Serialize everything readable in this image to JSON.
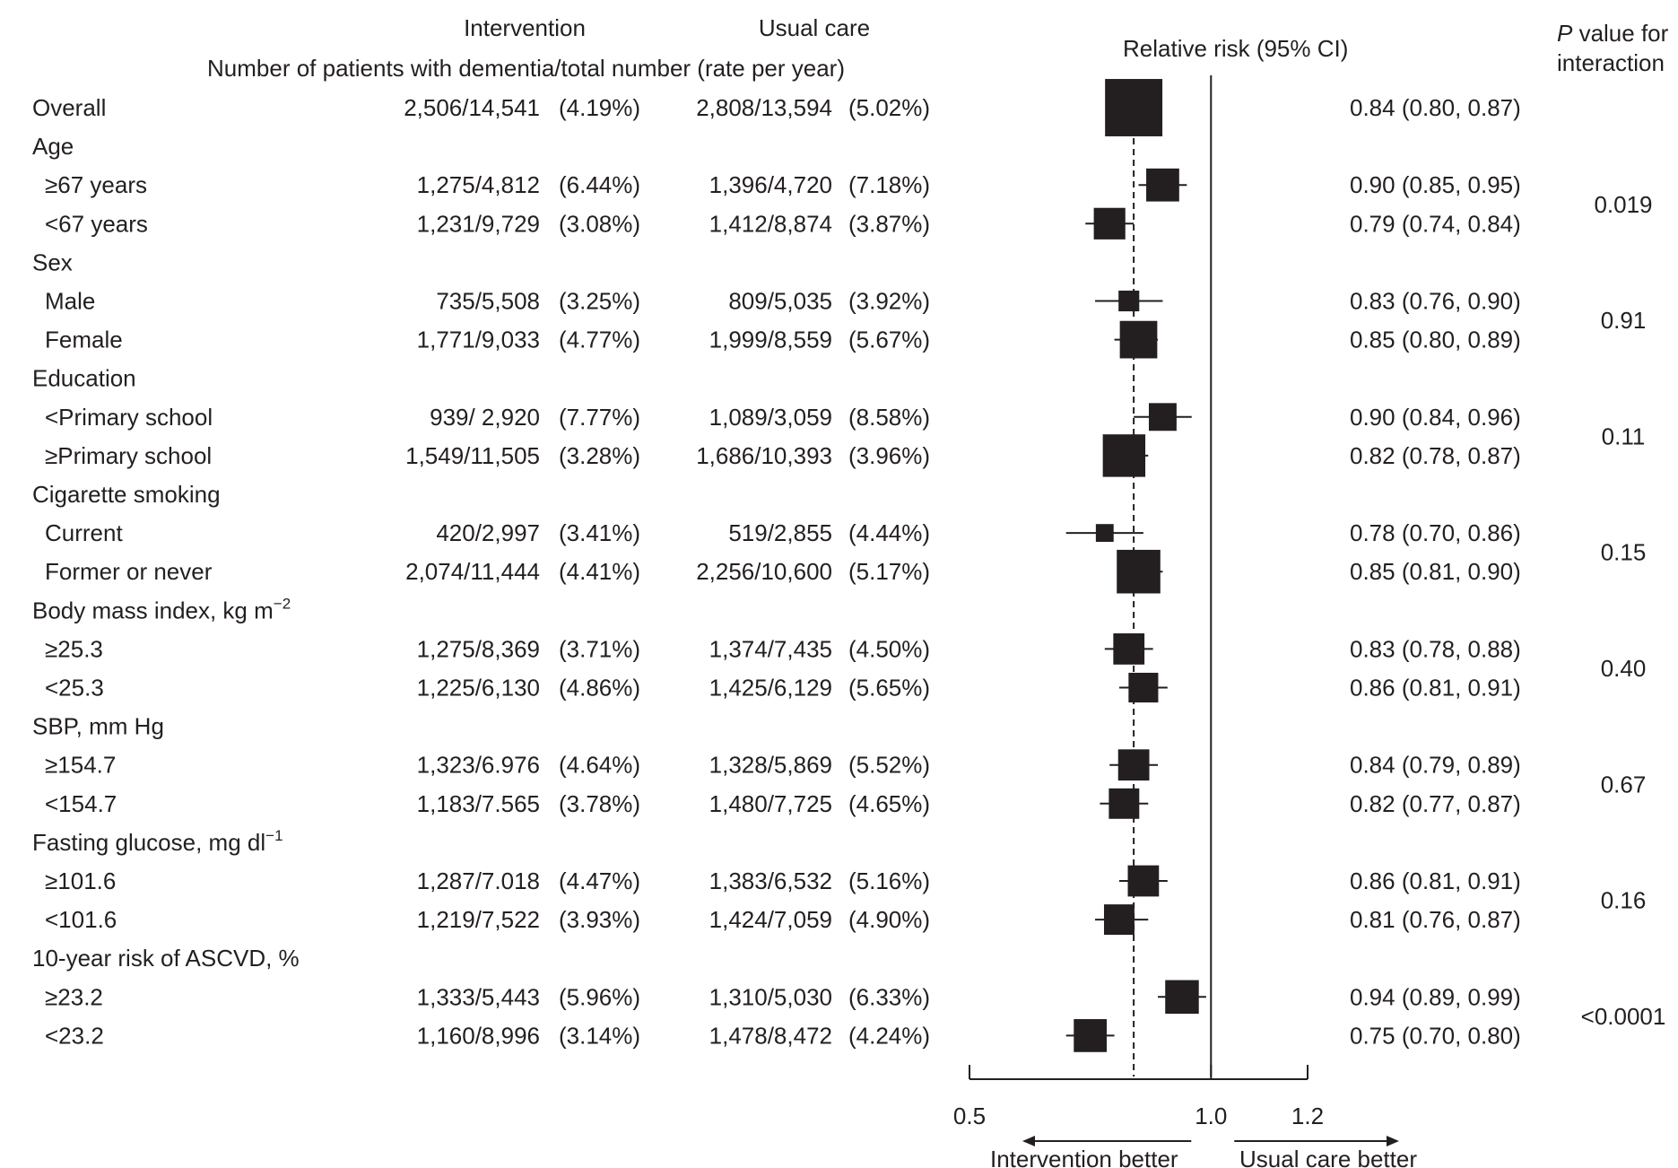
{
  "chart_data": {
    "type": "forest",
    "header": {
      "intervention": "Intervention",
      "usual_care": "Usual care",
      "counts_subtitle": "Number of patients with dementia/total number (rate per year)",
      "effect_title": "Relative risk (95% CI)",
      "p_value_label_italic": "P",
      "p_value_label_rest": " value for",
      "p_value_label_line2": "interaction"
    },
    "rows": [
      {
        "label": "Overall",
        "indent": false,
        "intervention": "2,506/14,541",
        "int_rate": "(4.19%)",
        "usual": "2,808/13,594",
        "usual_rate": "(5.02%)",
        "rr": 0.84,
        "lo": 0.8,
        "hi": 0.87,
        "rr_text": "0.84 (0.80, 0.87)",
        "weight": 14541
      },
      {
        "label": "Age",
        "heading": true
      },
      {
        "label": "≥67 years",
        "indent": true,
        "intervention": "1,275/4,812",
        "int_rate": "(6.44%)",
        "usual": "1,396/4,720",
        "usual_rate": "(7.18%)",
        "rr": 0.9,
        "lo": 0.85,
        "hi": 0.95,
        "rr_text": "0.90 (0.85, 0.95)",
        "weight": 4812
      },
      {
        "label": "<67 years",
        "indent": true,
        "intervention": "1,231/9,729",
        "int_rate": "(3.08%)",
        "usual": "1,412/8,874",
        "usual_rate": "(3.87%)",
        "rr": 0.79,
        "lo": 0.74,
        "hi": 0.84,
        "rr_text": "0.79 (0.74, 0.84)",
        "weight": 4400
      },
      {
        "label": "Sex",
        "heading": true
      },
      {
        "label": "Male",
        "indent": true,
        "intervention": "735/5,508",
        "int_rate": "(3.25%)",
        "usual": "809/5,035",
        "usual_rate": "(3.92%)",
        "rr": 0.83,
        "lo": 0.76,
        "hi": 0.9,
        "rr_text": "0.83 (0.76, 0.90)",
        "weight": 1900
      },
      {
        "label": "Female",
        "indent": true,
        "intervention": "1,771/9,033",
        "int_rate": "(4.77%)",
        "usual": "1,999/8,559",
        "usual_rate": "(5.67%)",
        "rr": 0.85,
        "lo": 0.8,
        "hi": 0.89,
        "rr_text": "0.85 (0.80, 0.89)",
        "weight": 6200
      },
      {
        "label": "Education",
        "heading": true
      },
      {
        "label": "<Primary school",
        "indent": true,
        "intervention": "939/ 2,920",
        "int_rate": "(7.77%)",
        "usual": "1,089/3,059",
        "usual_rate": "(8.58%)",
        "rr": 0.9,
        "lo": 0.84,
        "hi": 0.96,
        "rr_text": "0.90 (0.84, 0.96)",
        "weight": 3400
      },
      {
        "label": "≥Primary school",
        "indent": true,
        "intervention": "1,549/11,505",
        "int_rate": "(3.28%)",
        "usual": "1,686/10,393",
        "usual_rate": "(3.96%)",
        "rr": 0.82,
        "lo": 0.78,
        "hi": 0.87,
        "rr_text": "0.82 (0.78, 0.87)",
        "weight": 8000
      },
      {
        "label": "Cigarette smoking",
        "heading": true
      },
      {
        "label": "Current",
        "indent": true,
        "intervention": "420/2,997",
        "int_rate": "(3.41%)",
        "usual": "519/2,855",
        "usual_rate": "(4.44%)",
        "rr": 0.78,
        "lo": 0.7,
        "hi": 0.86,
        "rr_text": "0.78 (0.70, 0.86)",
        "weight": 1400
      },
      {
        "label": "Former or never",
        "indent": true,
        "intervention": "2,074/11,444",
        "int_rate": "(4.41%)",
        "usual": "2,256/10,600",
        "usual_rate": "(5.17%)",
        "rr": 0.85,
        "lo": 0.81,
        "hi": 0.9,
        "rr_text": "0.85 (0.81, 0.90)",
        "weight": 8400
      },
      {
        "label": "Body mass index, kg m",
        "label_sup": "−2",
        "heading": true
      },
      {
        "label": "≥25.3",
        "indent": true,
        "intervention": "1,275/8,369",
        "int_rate": "(3.71%)",
        "usual": "1,374/7,435",
        "usual_rate": "(4.50%)",
        "rr": 0.83,
        "lo": 0.78,
        "hi": 0.88,
        "rr_text": "0.83 (0.78, 0.88)",
        "weight": 4300
      },
      {
        "label": "<25.3",
        "indent": true,
        "intervention": "1,225/6,130",
        "int_rate": "(4.86%)",
        "usual": "1,425/6,129",
        "usual_rate": "(5.65%)",
        "rr": 0.86,
        "lo": 0.81,
        "hi": 0.91,
        "rr_text": "0.86 (0.81, 0.91)",
        "weight": 3900
      },
      {
        "label": "SBP, mm Hg",
        "heading": true
      },
      {
        "label": "≥154.7",
        "indent": true,
        "intervention": "1,323/6.976",
        "int_rate": "(4.64%)",
        "usual": "1,328/5,869",
        "usual_rate": "(5.52%)",
        "rr": 0.84,
        "lo": 0.79,
        "hi": 0.89,
        "rr_text": "0.84 (0.79, 0.89)",
        "weight": 4300
      },
      {
        "label": "<154.7",
        "indent": true,
        "intervention": "1,183/7.565",
        "int_rate": "(3.78%)",
        "usual": "1,480/7,725",
        "usual_rate": "(4.65%)",
        "rr": 0.82,
        "lo": 0.77,
        "hi": 0.87,
        "rr_text": "0.82 (0.77, 0.87)",
        "weight": 4100
      },
      {
        "label": "Fasting glucose, mg dl",
        "label_sup": "−1",
        "heading": true
      },
      {
        "label": "≥101.6",
        "indent": true,
        "intervention": "1,287/7.018",
        "int_rate": "(4.47%)",
        "usual": "1,383/6,532",
        "usual_rate": "(5.16%)",
        "rr": 0.86,
        "lo": 0.81,
        "hi": 0.91,
        "rr_text": "0.86 (0.81, 0.91)",
        "weight": 4300
      },
      {
        "label": "<101.6",
        "indent": true,
        "intervention": "1,219/7,522",
        "int_rate": "(3.93%)",
        "usual": "1,424/7,059",
        "usual_rate": "(4.90%)",
        "rr": 0.81,
        "lo": 0.76,
        "hi": 0.87,
        "rr_text": "0.81 (0.76, 0.87)",
        "weight": 4100
      },
      {
        "label": "10-year risk of ASCVD, %",
        "heading": true
      },
      {
        "label": "≥23.2",
        "indent": true,
        "intervention": "1,333/5,443",
        "int_rate": "(5.96%)",
        "usual": "1,310/5,030",
        "usual_rate": "(6.33%)",
        "rr": 0.94,
        "lo": 0.89,
        "hi": 0.99,
        "rr_text": "0.94 (0.89, 0.99)",
        "weight": 5000
      },
      {
        "label": "<23.2",
        "indent": true,
        "intervention": "1,160/8,996",
        "int_rate": "(3.14%)",
        "usual": "1,478/8,472",
        "usual_rate": "(4.24%)",
        "rr": 0.75,
        "lo": 0.7,
        "hi": 0.8,
        "rr_text": "0.75 (0.70, 0.80)",
        "weight": 4800
      }
    ],
    "p_values": [
      {
        "value": "0.019",
        "rows": [
          2,
          3
        ]
      },
      {
        "value": "0.91",
        "rows": [
          5,
          6
        ]
      },
      {
        "value": "0.11",
        "rows": [
          8,
          9
        ]
      },
      {
        "value": "0.15",
        "rows": [
          11,
          12
        ]
      },
      {
        "value": "0.40",
        "rows": [
          14,
          15
        ]
      },
      {
        "value": "0.67",
        "rows": [
          17,
          18
        ]
      },
      {
        "value": "0.16",
        "rows": [
          20,
          21
        ]
      },
      {
        "value": "<0.0001",
        "rows": [
          23,
          24
        ]
      }
    ],
    "x_axis": {
      "range": [
        0.5,
        1.2
      ],
      "ticks": [
        0.5,
        1.0,
        1.2
      ],
      "tick_labels": [
        "0.5",
        "1.0",
        "1.2"
      ],
      "null_line": 1.0,
      "reference_line": 0.84,
      "left_arrow_label": "Intervention better",
      "right_arrow_label": "Usual care better"
    }
  }
}
